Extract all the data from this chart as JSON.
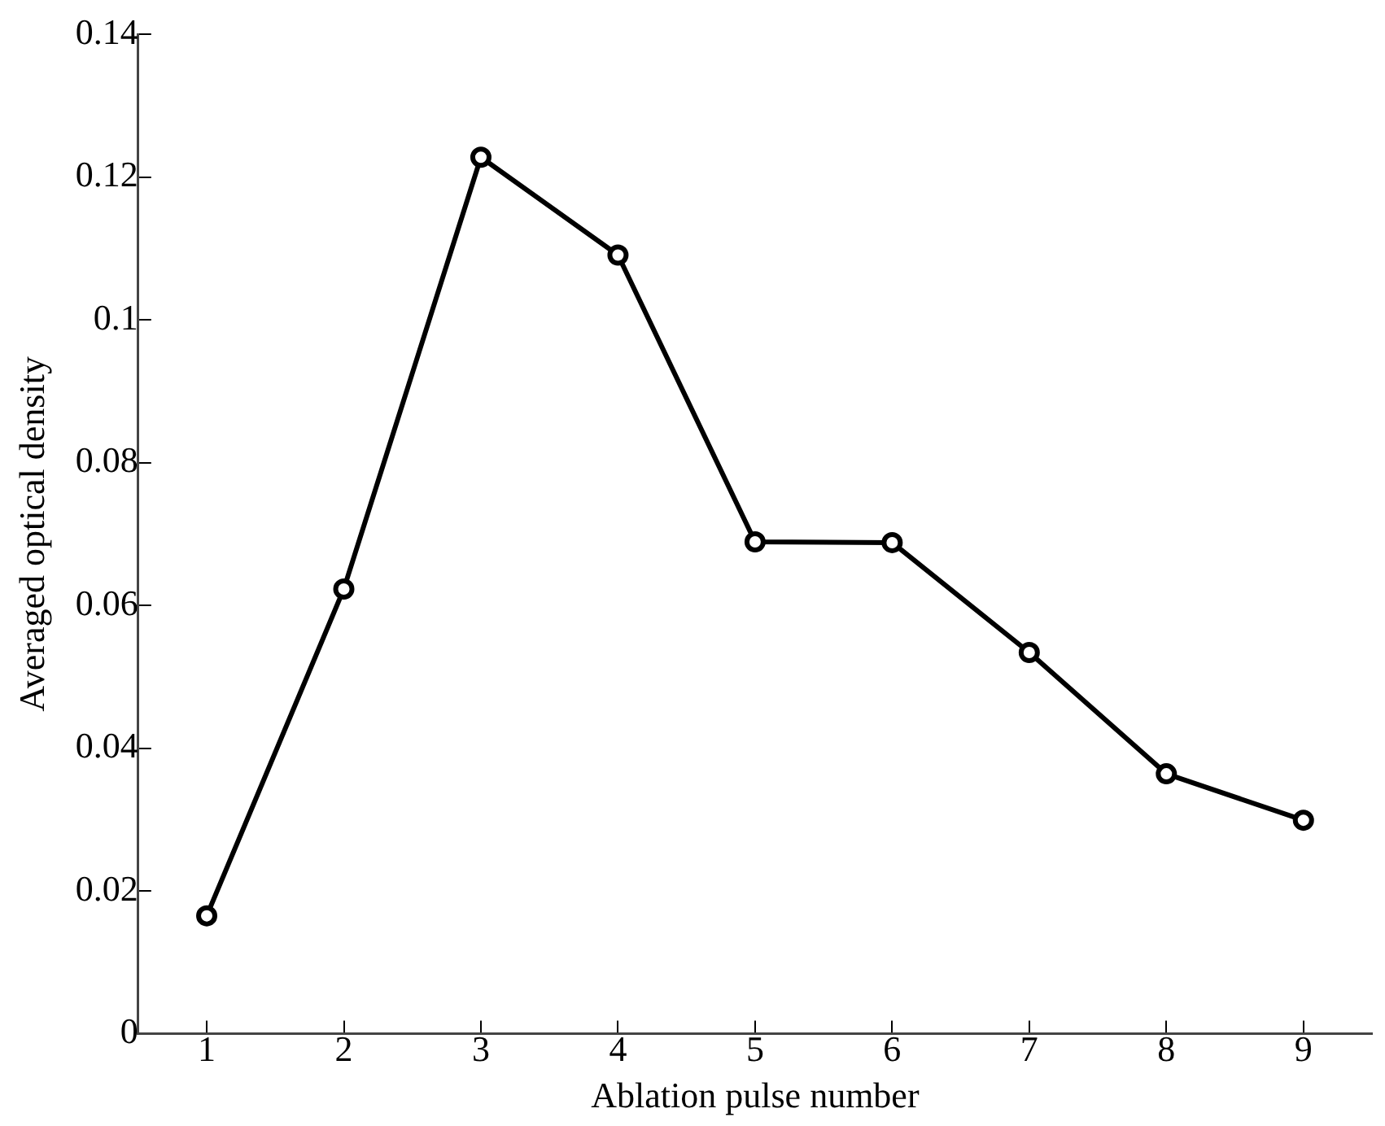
{
  "chart_data": {
    "type": "line",
    "xlabel": "Ablation pulse number",
    "ylabel": "Averaged optical density",
    "x": [
      1,
      2,
      3,
      4,
      5,
      6,
      7,
      8,
      9
    ],
    "series": [
      {
        "color": "#000000",
        "values": [
          0.0165,
          0.0623,
          0.1228,
          0.1091,
          0.0689,
          0.0688,
          0.0534,
          0.0364,
          0.0299
        ]
      }
    ],
    "xlim": [
      0.5,
      9.5
    ],
    "xticks": [
      1,
      2,
      3,
      4,
      5,
      6,
      7,
      8,
      9
    ],
    "ylim": [
      0,
      0.14
    ],
    "yticks": [
      0,
      0.02,
      0.04,
      0.06,
      0.08,
      0.1,
      0.12,
      0.14
    ],
    "grid": false,
    "legend": false,
    "marker": "circle",
    "line_style": "solid"
  }
}
